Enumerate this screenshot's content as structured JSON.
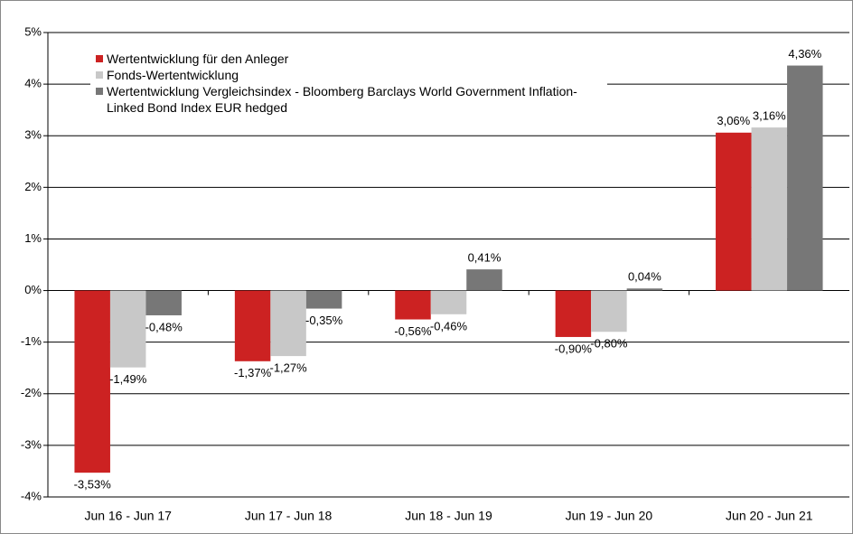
{
  "chart_data": {
    "type": "bar",
    "categories": [
      "Jun 16 - Jun 17",
      "Jun 17 - Jun 18",
      "Jun 18 - Jun 19",
      "Jun 19 - Jun 20",
      "Jun 20 - Jun 21"
    ],
    "series": [
      {
        "name": "Wertentwicklung für den Anleger",
        "color": "#cc2222",
        "values": [
          -3.53,
          -1.37,
          -0.56,
          -0.9,
          3.06
        ],
        "value_labels": [
          "-3,53%",
          "-1,37%",
          "-0,56%",
          "-0,90%",
          "3,06%"
        ]
      },
      {
        "name": "Fonds-Wertentwicklung",
        "color": "#c8c8c8",
        "values": [
          -1.49,
          -1.27,
          -0.46,
          -0.8,
          3.16
        ],
        "value_labels": [
          "-1,49%",
          "-1,27%",
          "-0,46%",
          "-0,80%",
          "3,16%"
        ]
      },
      {
        "name": "Wertentwicklung Vergleichsindex - Bloomberg Barclays World Government Inflation-Linked Bond Index EUR hedged",
        "color": "#777777",
        "values": [
          -0.48,
          -0.35,
          0.41,
          0.04,
          4.36
        ],
        "value_labels": [
          "-0,48%",
          "-0,35%",
          "0,41%",
          "0,04%",
          "4,36%"
        ]
      }
    ],
    "ylim": [
      -4,
      5
    ],
    "yticks": [
      {
        "value": -4,
        "label": "-4%"
      },
      {
        "value": -3,
        "label": "-3%"
      },
      {
        "value": -2,
        "label": "-2%"
      },
      {
        "value": -1,
        "label": "-1%"
      },
      {
        "value": 0,
        "label": "0%"
      },
      {
        "value": 1,
        "label": "1%"
      },
      {
        "value": 2,
        "label": "2%"
      },
      {
        "value": 3,
        "label": "3%"
      },
      {
        "value": 4,
        "label": "4%"
      },
      {
        "value": 5,
        "label": "5%"
      }
    ],
    "grid": true,
    "legend": "top-left"
  }
}
